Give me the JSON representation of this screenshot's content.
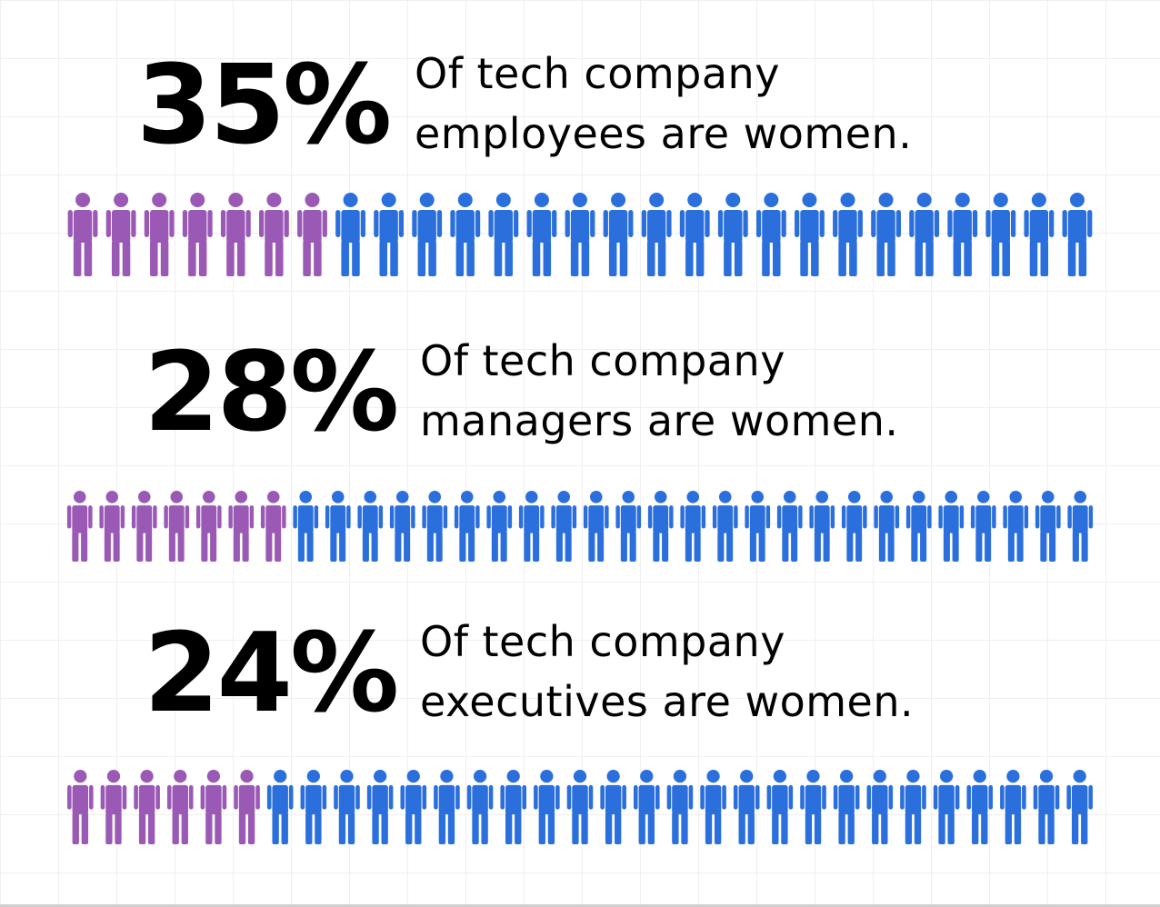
{
  "chart_data": {
    "type": "pictogram",
    "stats": [
      {
        "percent_label": "35%",
        "value": 35,
        "caption_line1": "Of tech company",
        "caption_line2": "employees are women.",
        "highlighted_count": 7,
        "total_count": 27
      },
      {
        "percent_label": "28%",
        "value": 28,
        "caption_line1": "Of tech company",
        "caption_line2": "managers are women.",
        "highlighted_count": 7,
        "total_count": 32
      },
      {
        "percent_label": "24%",
        "value": 24,
        "caption_line1": "Of tech company",
        "caption_line2": "executives are women.",
        "highlighted_count": 6,
        "total_count": 31
      }
    ],
    "colors": {
      "women": "#9b59b6",
      "others": "#2a6fdb"
    },
    "icon": "person-icon"
  }
}
